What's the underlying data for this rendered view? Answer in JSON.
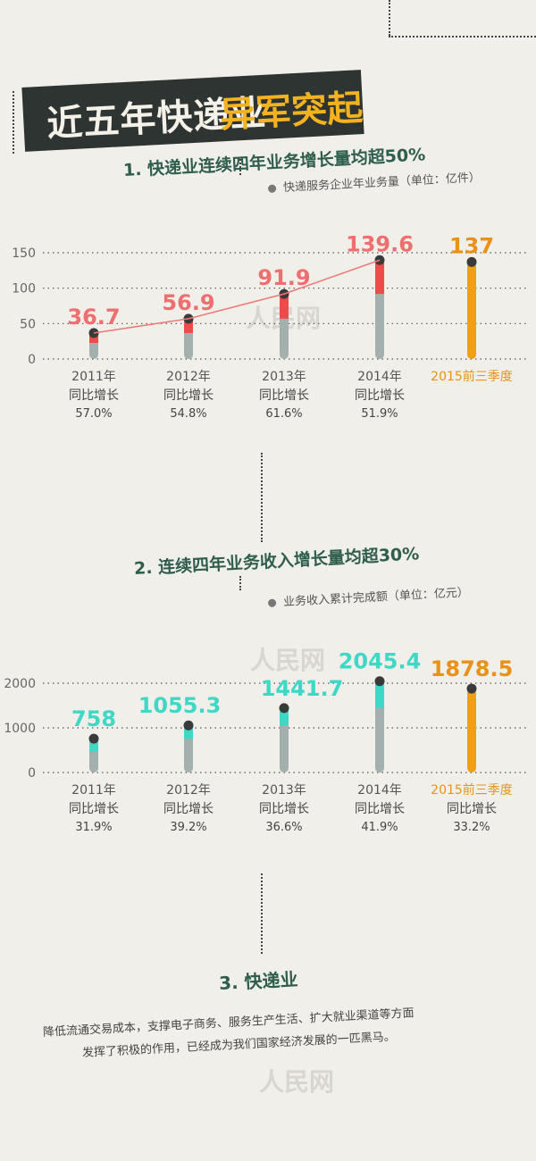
{
  "page": {
    "title_part1": "近五年快递业",
    "title_part2": "异军突起",
    "section1_title": "1. 快递业连续四年业务增长量均超50%",
    "section1_unit": "快递服务企业年业务量（单位：亿件）",
    "section2_title": "2. 连续四年业务收入增长量均超30%",
    "section2_unit": "业务收入累计完成额（单位：亿元）",
    "section3_title": "3. 快递业",
    "section3_line1": "降低流通交易成本，支撑电子商务、服务生产生活、扩大就业渠道等方面",
    "section3_line2": "发挥了积极的作用，已经成为我们国家经济发展的一匹黑马。",
    "watermark": "人民网"
  },
  "colors": {
    "accent": "#f3b21f",
    "dark": "#2e3431",
    "green_title": "#2f5e4e",
    "red": "#ee4b4b",
    "red_label": "#ee6f6f",
    "teal": "#3fd8c6",
    "gray_bar": "#a3b0ae",
    "orange": "#f0a016",
    "orange_label": "#e8921a"
  },
  "chart_data": [
    {
      "type": "bar",
      "title": "快递服务企业年业务量（单位：亿件）",
      "categories": [
        "2011年",
        "2012年",
        "2013年",
        "2014年",
        "2015前三季度"
      ],
      "growth_label": "同比增长",
      "growth": [
        "57.0%",
        "54.8%",
        "61.6%",
        "51.9%",
        ""
      ],
      "values": [
        36.7,
        56.9,
        91.9,
        139.6,
        137
      ],
      "value_labels": [
        "36.7",
        "56.9",
        "91.9",
        "139.6",
        "137"
      ],
      "yticks": [
        0,
        50,
        100,
        150
      ],
      "ylim": [
        0,
        150
      ],
      "trend_line": true
    },
    {
      "type": "bar",
      "title": "业务收入累计完成额（单位：亿元）",
      "categories": [
        "2011年",
        "2012年",
        "2013年",
        "2014年",
        "2015前三季度"
      ],
      "growth_label": "同比增长",
      "growth": [
        "31.9%",
        "39.2%",
        "36.6%",
        "41.9%",
        "33.2%"
      ],
      "values": [
        758,
        1055.3,
        1441.7,
        2045.4,
        1878.5
      ],
      "value_labels": [
        "758",
        "1055.3",
        "1441.7",
        "2045.4",
        "1878.5"
      ],
      "yticks": [
        0,
        1000,
        2000
      ],
      "ylim": [
        0,
        2000
      ],
      "trend_line": false
    }
  ]
}
